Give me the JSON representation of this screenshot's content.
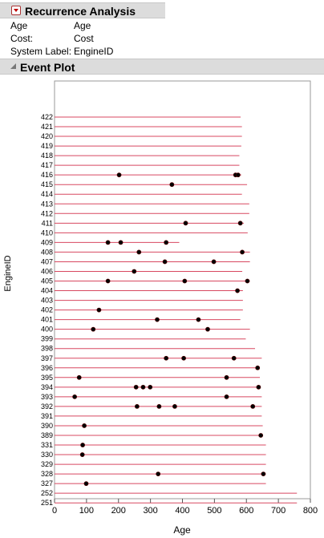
{
  "report": {
    "title": "Recurrence Analysis",
    "fields": [
      {
        "key": "Age",
        "value": "Age"
      },
      {
        "key": "Cost:",
        "value": "Cost"
      },
      {
        "key": "System Label:",
        "value": "EngineID"
      }
    ]
  },
  "event_plot": {
    "title": "Event Plot"
  },
  "colors": {
    "line": "#d84860",
    "dot": "#000000",
    "header_bg": "#dcdcdc"
  },
  "chart_data": {
    "type": "scatter",
    "title": "",
    "xlabel": "Age",
    "ylabel": "EngineID",
    "xlim": [
      0,
      800
    ],
    "x_ticks": [
      "0",
      "100",
      "200",
      "300",
      "400",
      "500",
      "600",
      "700",
      "800"
    ],
    "grid": false,
    "systems": [
      {
        "id": "422",
        "end": 582,
        "events": []
      },
      {
        "id": "421",
        "end": 586,
        "events": []
      },
      {
        "id": "420",
        "end": 586,
        "events": []
      },
      {
        "id": "419",
        "end": 584,
        "events": []
      },
      {
        "id": "418",
        "end": 578,
        "events": []
      },
      {
        "id": "417",
        "end": 578,
        "events": []
      },
      {
        "id": "416",
        "end": 584,
        "events": [
          202,
          566,
          574
        ]
      },
      {
        "id": "415",
        "end": 602,
        "events": [
          367
        ]
      },
      {
        "id": "414",
        "end": 586,
        "events": []
      },
      {
        "id": "413",
        "end": 609,
        "events": []
      },
      {
        "id": "412",
        "end": 609,
        "events": []
      },
      {
        "id": "411",
        "end": 592,
        "events": [
          410,
          581
        ]
      },
      {
        "id": "410",
        "end": 604,
        "events": []
      },
      {
        "id": "409",
        "end": 390,
        "events": [
          167,
          207,
          349
        ]
      },
      {
        "id": "408",
        "end": 611,
        "events": [
          264,
          587
        ]
      },
      {
        "id": "407",
        "end": 611,
        "events": [
          345,
          498
        ]
      },
      {
        "id": "406",
        "end": 587,
        "events": [
          249
        ]
      },
      {
        "id": "405",
        "end": 611,
        "events": [
          167,
          407,
          603
        ]
      },
      {
        "id": "404",
        "end": 589,
        "events": [
          572
        ]
      },
      {
        "id": "403",
        "end": 589,
        "events": []
      },
      {
        "id": "402",
        "end": 589,
        "events": [
          139
        ]
      },
      {
        "id": "401",
        "end": 581,
        "events": [
          321,
          450
        ]
      },
      {
        "id": "400",
        "end": 611,
        "events": [
          121,
          479
        ]
      },
      {
        "id": "399",
        "end": 598,
        "events": []
      },
      {
        "id": "398",
        "end": 627,
        "events": []
      },
      {
        "id": "397",
        "end": 648,
        "events": [
          349,
          404,
          561
        ]
      },
      {
        "id": "396",
        "end": 637,
        "events": [
          635
        ]
      },
      {
        "id": "395",
        "end": 642,
        "events": [
          77,
          538
        ]
      },
      {
        "id": "394",
        "end": 642,
        "events": [
          255,
          277,
          299,
          638
        ]
      },
      {
        "id": "393",
        "end": 648,
        "events": [
          63,
          538
        ]
      },
      {
        "id": "392",
        "end": 648,
        "events": [
          258,
          327,
          376,
          620
        ]
      },
      {
        "id": "391",
        "end": 648,
        "events": []
      },
      {
        "id": "390",
        "end": 651,
        "events": [
          93
        ]
      },
      {
        "id": "389",
        "end": 651,
        "events": [
          645
        ]
      },
      {
        "id": "331",
        "end": 661,
        "events": [
          88
        ]
      },
      {
        "id": "330",
        "end": 661,
        "events": [
          87
        ]
      },
      {
        "id": "329",
        "end": 661,
        "events": []
      },
      {
        "id": "328",
        "end": 661,
        "events": [
          324,
          653
        ]
      },
      {
        "id": "327",
        "end": 661,
        "events": [
          99
        ]
      },
      {
        "id": "252",
        "end": 758,
        "events": []
      },
      {
        "id": "251",
        "end": 758,
        "events": []
      }
    ]
  }
}
